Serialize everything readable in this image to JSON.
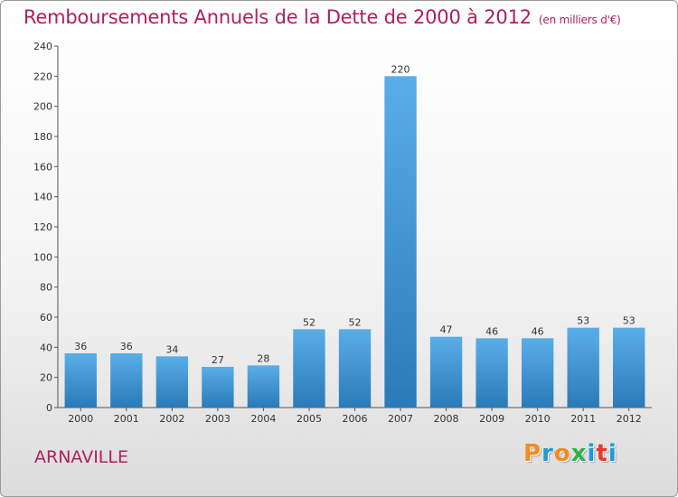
{
  "title": "Remboursements Annuels de la Dette de 2000 à 2012",
  "subtitle": "(en milliers d'€)",
  "location": "ARNAVILLE",
  "logo_text": "Proxiti",
  "colors": {
    "title": "#b0205a",
    "bar_top": "#5aaee8",
    "bar_bottom": "#2a7ab8",
    "logo": [
      "#f28c1e",
      "#1f9ad6",
      "#f28c1e",
      "#2bb24c",
      "#1f9ad6",
      "#e8392c",
      "#1f9ad6"
    ]
  },
  "chart_data": {
    "type": "bar",
    "title": "Remboursements Annuels de la Dette de 2000 à 2012",
    "subtitle": "(en milliers d'€)",
    "categories": [
      "2000",
      "2001",
      "2002",
      "2003",
      "2004",
      "2005",
      "2006",
      "2007",
      "2008",
      "2009",
      "2010",
      "2011",
      "2012"
    ],
    "values": [
      36,
      36,
      34,
      27,
      28,
      52,
      52,
      220,
      47,
      46,
      46,
      53,
      53
    ],
    "ylim": [
      0,
      240
    ],
    "yticks": [
      0,
      20,
      40,
      60,
      80,
      100,
      120,
      140,
      160,
      180,
      200,
      220,
      240
    ],
    "grid": false,
    "legend": "none"
  }
}
